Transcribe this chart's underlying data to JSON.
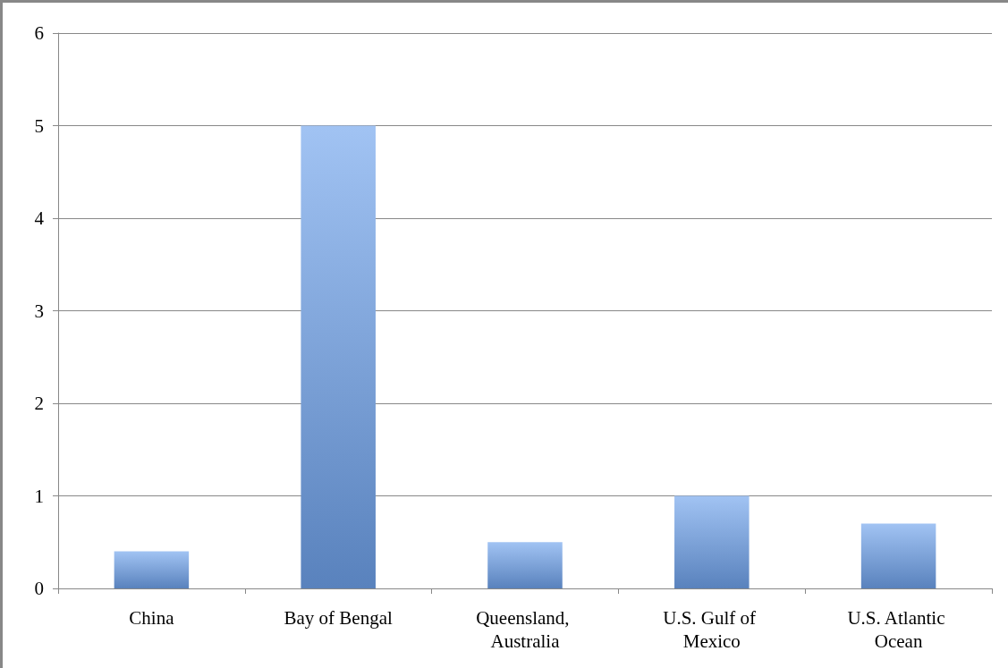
{
  "chart_data": {
    "type": "bar",
    "categories": [
      "China",
      "Bay of Bengal",
      "Queensland, Australia",
      "U.S. Gulf of Mexico",
      "U.S. Atlantic Ocean"
    ],
    "values": [
      0.4,
      5,
      0.5,
      1,
      0.7
    ],
    "color": "#6fa3ec",
    "ylim": [
      0,
      6
    ],
    "yticks": [
      0,
      1,
      2,
      3,
      4,
      5,
      6
    ],
    "grid": "y"
  }
}
